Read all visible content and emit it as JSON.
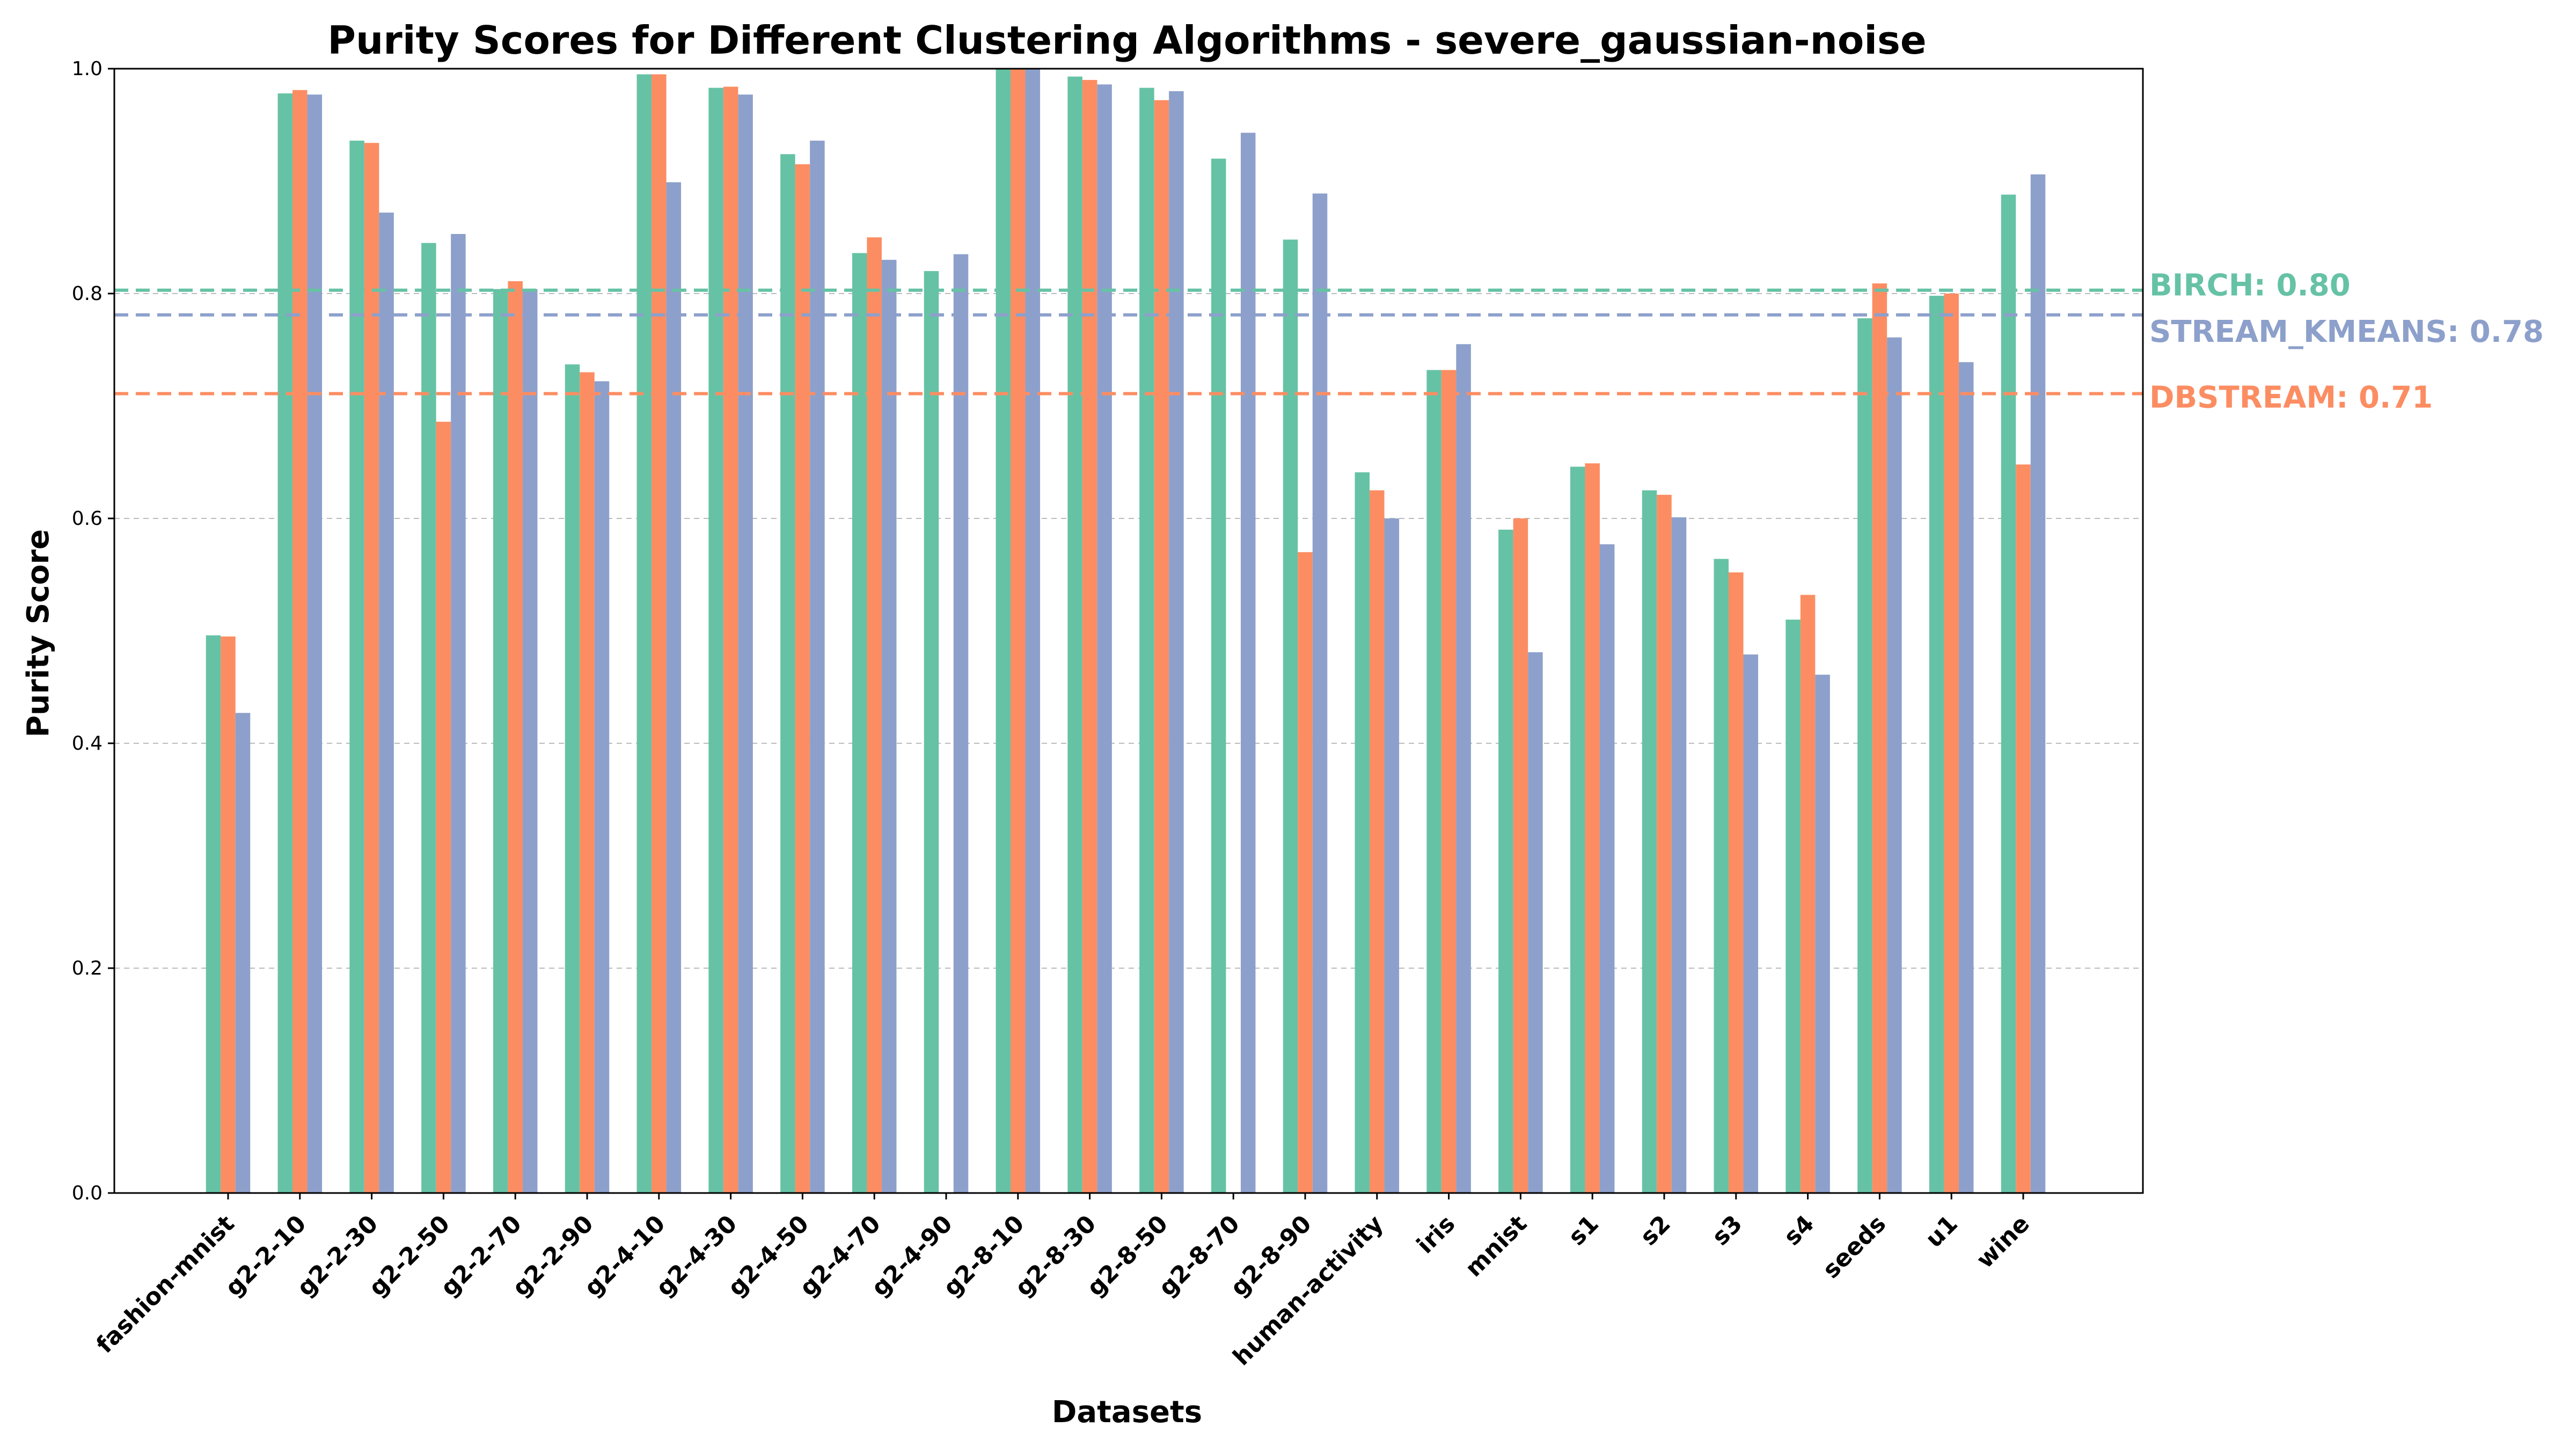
{
  "chart_data": {
    "type": "bar",
    "title": "Purity Scores for Different Clustering Algorithms - severe_gaussian-noise",
    "xlabel": "Datasets",
    "ylabel": "Purity Score",
    "ylim": [
      0,
      1
    ],
    "yticks": [
      "0.0",
      "0.2",
      "0.4",
      "0.6",
      "0.8",
      "1.0"
    ],
    "grid": "y-dashed",
    "categories": [
      "fashion-mnist",
      "g2-2-10",
      "g2-2-30",
      "g2-2-50",
      "g2-2-70",
      "g2-2-90",
      "g2-4-10",
      "g2-4-30",
      "g2-4-50",
      "g2-4-70",
      "g2-4-90",
      "g2-8-10",
      "g2-8-30",
      "g2-8-50",
      "g2-8-70",
      "g2-8-90",
      "human-activity",
      "iris",
      "mnist",
      "s1",
      "s2",
      "s3",
      "s4",
      "seeds",
      "u1",
      "wine"
    ],
    "series": [
      {
        "name": "BIRCH",
        "color": "#66c2a5",
        "values": [
          0.496,
          0.978,
          0.936,
          0.845,
          0.804,
          0.737,
          0.995,
          0.983,
          0.924,
          0.836,
          0.82,
          1.0,
          0.993,
          0.983,
          0.92,
          0.848,
          0.641,
          0.732,
          0.59,
          0.646,
          0.625,
          0.564,
          0.51,
          0.778,
          0.798,
          0.888
        ]
      },
      {
        "name": "DBSTREAM",
        "color": "#fc8d62",
        "values": [
          0.495,
          0.981,
          0.934,
          0.686,
          0.811,
          0.73,
          0.995,
          0.984,
          0.915,
          0.85,
          null,
          1.0,
          0.99,
          0.972,
          null,
          0.57,
          0.625,
          0.732,
          0.6,
          0.649,
          0.621,
          0.552,
          0.532,
          0.809,
          0.8,
          0.648
        ]
      },
      {
        "name": "STREAM_KMEANS",
        "color": "#8da0cb",
        "values": [
          0.427,
          0.977,
          0.872,
          0.853,
          0.804,
          0.722,
          0.899,
          0.977,
          0.936,
          0.83,
          0.835,
          1.0,
          0.986,
          0.98,
          0.943,
          0.889,
          0.6,
          0.755,
          0.481,
          0.577,
          0.601,
          0.479,
          0.461,
          0.761,
          0.739,
          0.906
        ]
      }
    ],
    "averages": [
      {
        "label": "BIRCH: 0.80",
        "value": 0.803,
        "color": "#66c2a5"
      },
      {
        "label": "STREAM_KMEANS: 0.78",
        "value": 0.781,
        "color": "#8da0cb"
      },
      {
        "label": "DBSTREAM: 0.71",
        "value": 0.711,
        "color": "#fc8d62"
      }
    ]
  }
}
